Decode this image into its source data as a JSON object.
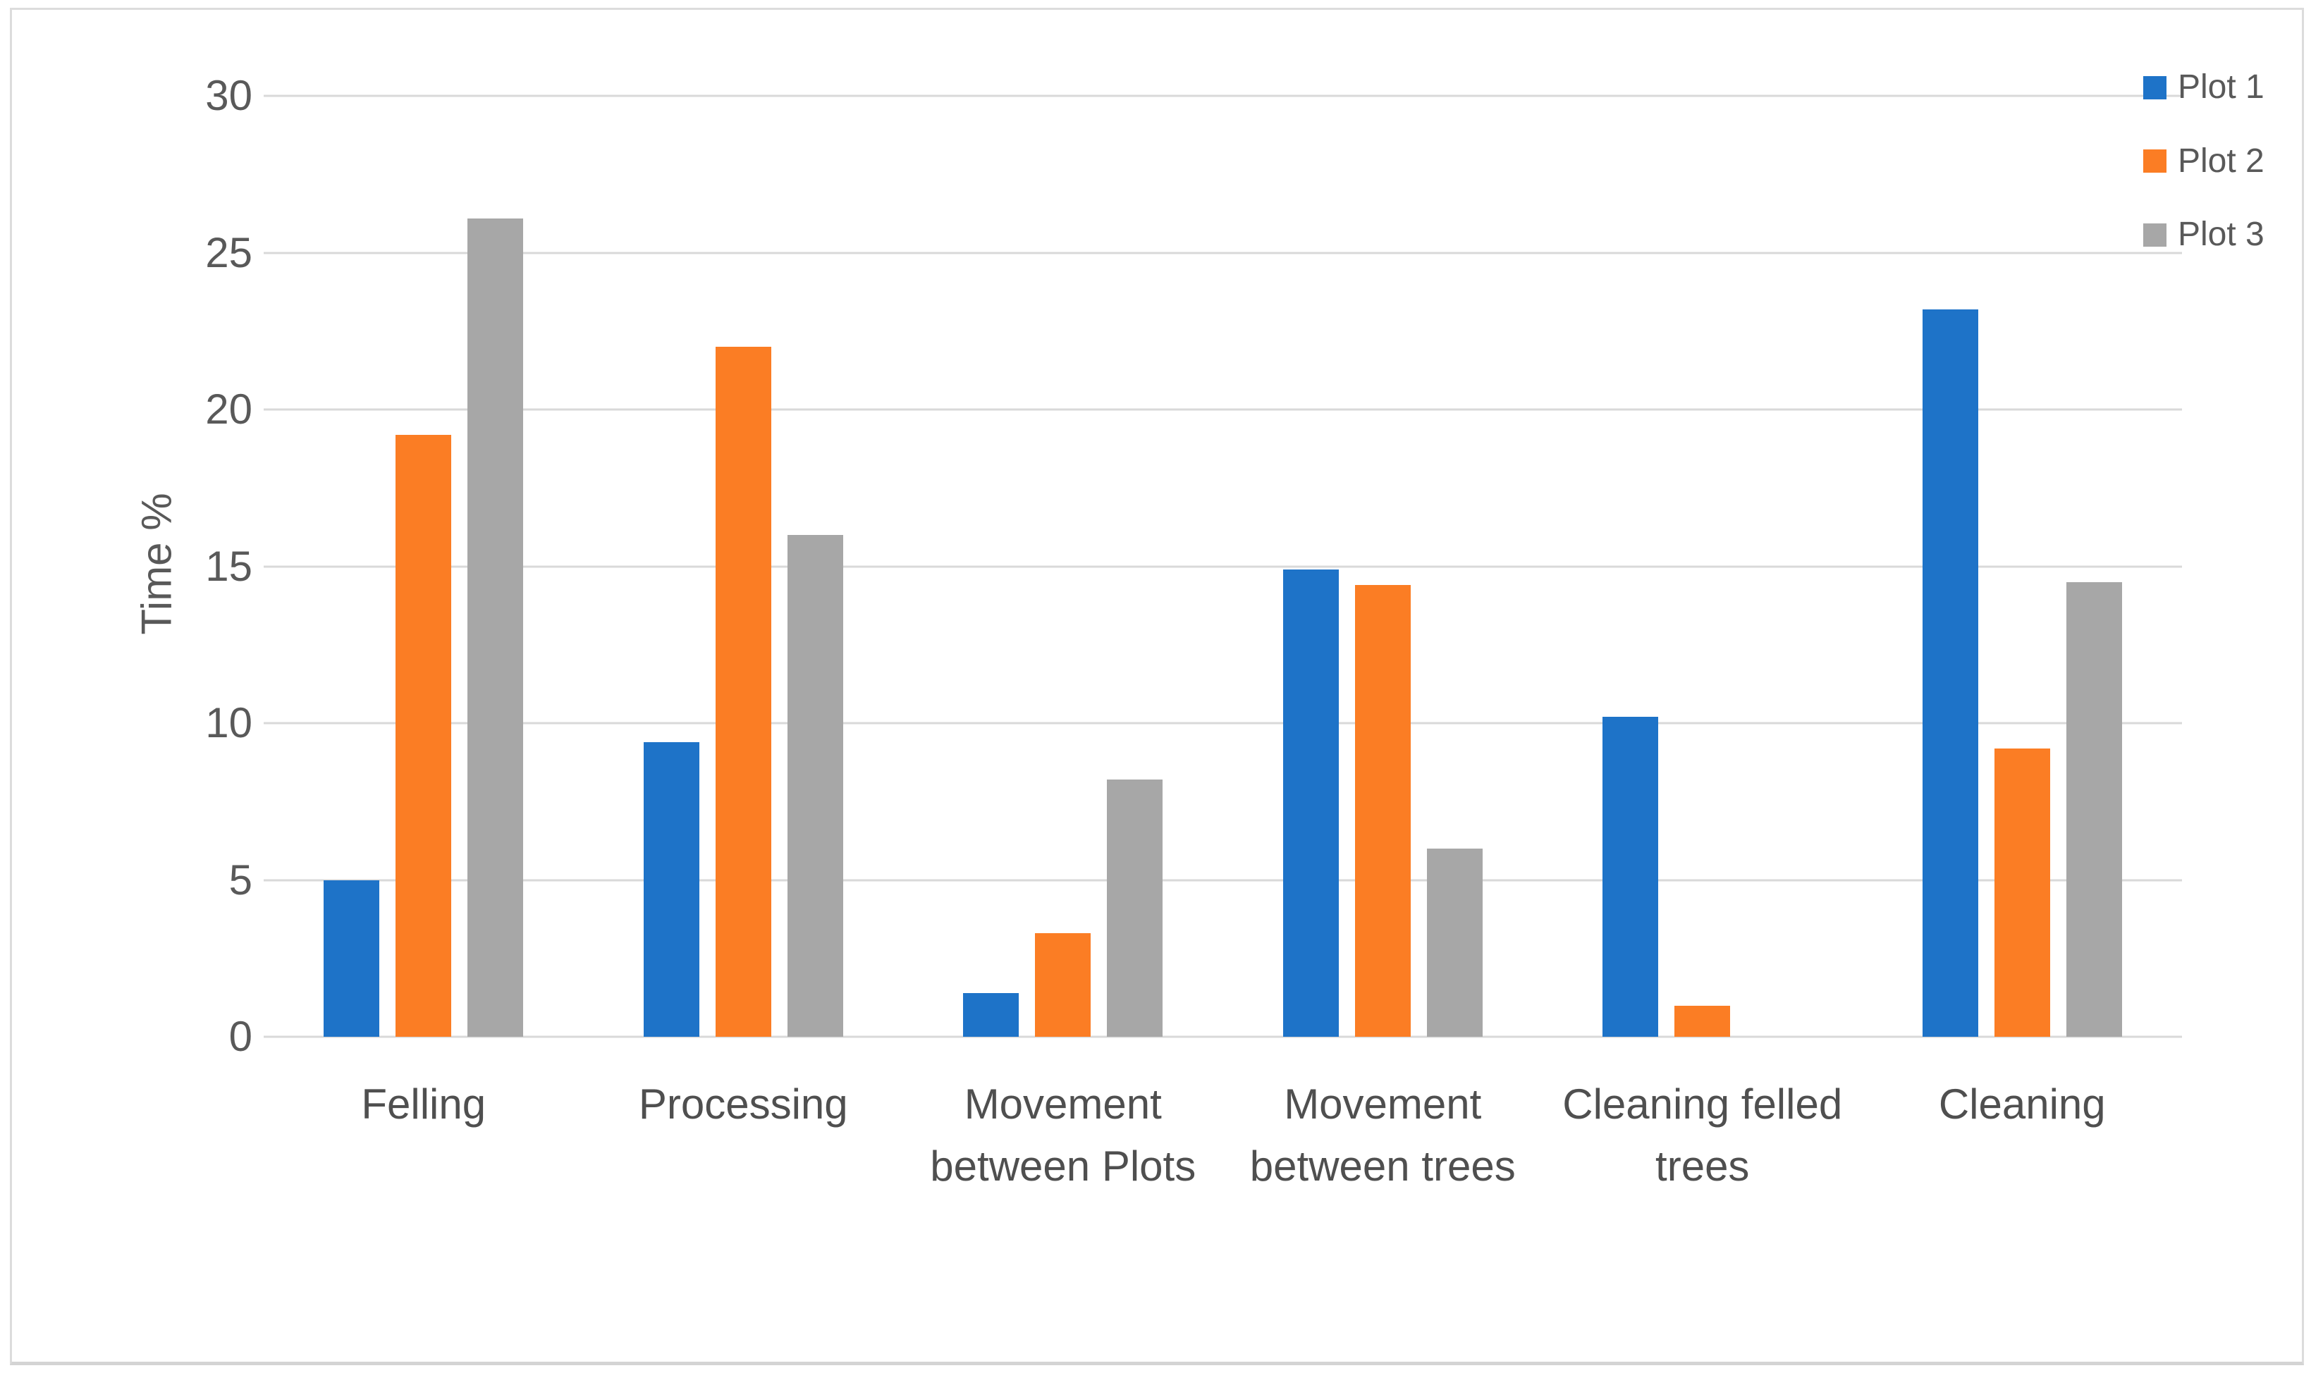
{
  "chart_data": {
    "type": "bar",
    "ylabel": "Time %",
    "ylim": [
      0,
      30
    ],
    "ytick_interval": 5,
    "yticks": [
      0,
      5,
      10,
      15,
      20,
      25,
      30
    ],
    "grid": "horizontal",
    "gridline_color": "#d9d9d9",
    "legend_position": "top-right",
    "categories": [
      "Felling",
      "Processing",
      "Movement between Plots",
      "Movement between trees",
      "Cleaning felled trees",
      "Cleaning"
    ],
    "series": [
      {
        "name": "Plot 1",
        "color": "#1e73c8",
        "values": [
          5.0,
          9.4,
          1.4,
          14.9,
          10.2,
          23.2
        ]
      },
      {
        "name": "Plot 2",
        "color": "#fb7d24",
        "values": [
          19.2,
          22.0,
          3.3,
          14.4,
          1.0,
          9.2
        ]
      },
      {
        "name": "Plot 3",
        "color": "#a7a7a7",
        "values": [
          26.1,
          16.0,
          8.2,
          6.0,
          0.0,
          14.5
        ]
      }
    ]
  },
  "colors": {
    "axis_text": "#595959",
    "category_text": "#4f4f4f",
    "figure_border": "#dcdcdc",
    "background": "#ffffff"
  }
}
